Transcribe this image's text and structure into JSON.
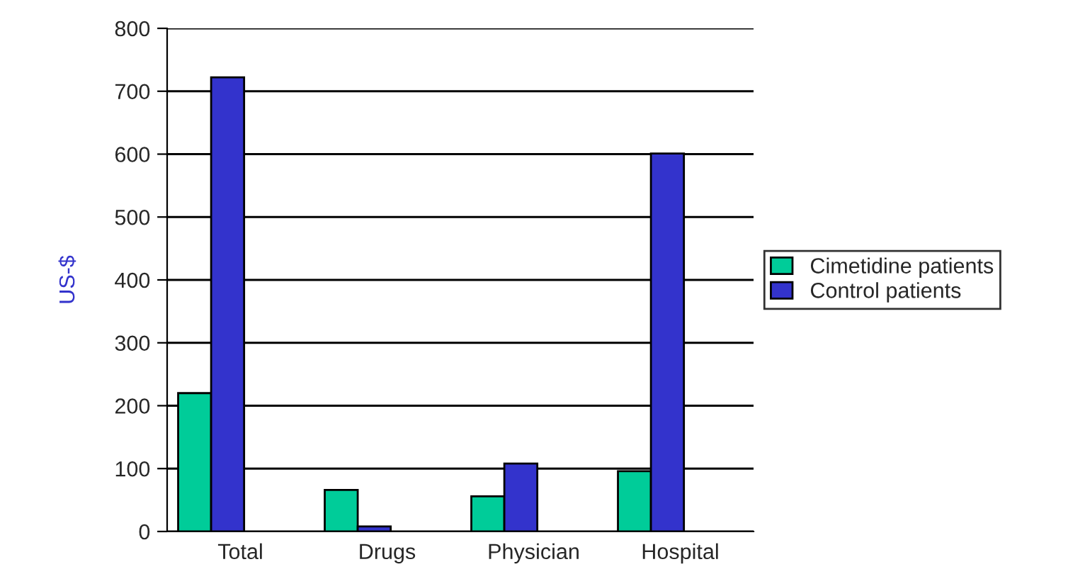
{
  "chart_data": {
    "type": "bar",
    "ylabel": "US-$",
    "categories": [
      "Total",
      "Drugs",
      "Physician",
      "Hospital"
    ],
    "series": [
      {
        "name": "Cimetidine patients",
        "color": "#00cc99",
        "values": [
          220,
          66,
          56,
          96
        ]
      },
      {
        "name": "Control patients",
        "color": "#3333cc",
        "values": [
          722,
          8,
          108,
          601
        ]
      }
    ],
    "ylim": [
      0,
      800
    ],
    "yticks": [
      0,
      100,
      200,
      300,
      400,
      500,
      600,
      700,
      800
    ],
    "grid": "y",
    "legend": "right"
  }
}
